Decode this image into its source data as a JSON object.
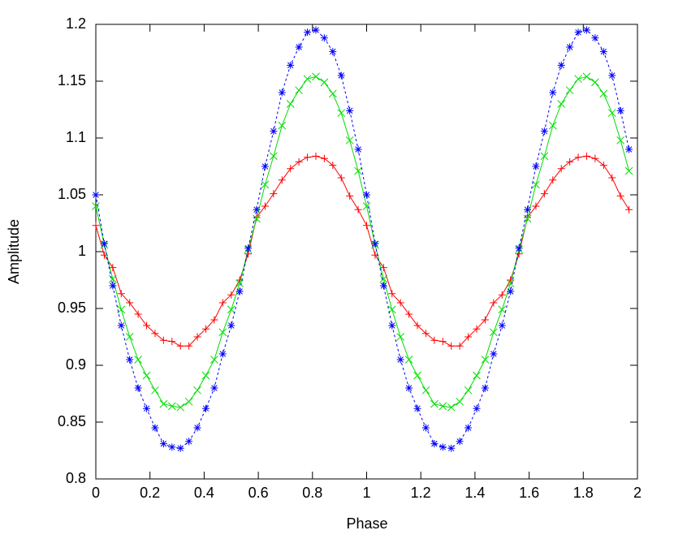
{
  "chart_data": {
    "type": "line",
    "x_label": "Phase",
    "y_label": "Amplitude",
    "xlim": [
      0,
      2
    ],
    "xticks": [
      0,
      0.2,
      0.4,
      0.6,
      0.8,
      1,
      1.2,
      1.4,
      1.6,
      1.8,
      2
    ],
    "ylim": [
      0.8,
      1.2
    ],
    "yticks": [
      0.8,
      0.85,
      0.9,
      0.95,
      1,
      1.05,
      1.1,
      1.15,
      1.2
    ],
    "x": [
      0,
      0.03125,
      0.0625,
      0.09375,
      0.125,
      0.15625,
      0.1875,
      0.21875,
      0.25,
      0.28125,
      0.3125,
      0.34375,
      0.375,
      0.40625,
      0.4375,
      0.46875,
      0.5,
      0.53125,
      0.5625,
      0.59375,
      0.625,
      0.65625,
      0.6875,
      0.71875,
      0.75,
      0.78125,
      0.8125,
      0.84375,
      0.875,
      0.90625,
      0.9375,
      0.96875,
      1,
      1.03125,
      1.0625,
      1.09375,
      1.125,
      1.15625,
      1.1875,
      1.21875,
      1.25,
      1.28125,
      1.3125,
      1.34375,
      1.375,
      1.40625,
      1.4375,
      1.46875,
      1.5,
      1.53125,
      1.5625,
      1.59375,
      1.625,
      1.65625,
      1.6875,
      1.71875,
      1.75,
      1.78125,
      1.8125,
      1.84375,
      1.875,
      1.90625,
      1.9375,
      1.96875
    ],
    "series": [
      {
        "color": "#ff0000",
        "marker": "plus",
        "dash": false,
        "values": [
          1.023,
          0.997,
          0.986,
          0.963,
          0.955,
          0.945,
          0.935,
          0.928,
          0.922,
          0.921,
          0.917,
          0.917,
          0.925,
          0.932,
          0.94,
          0.955,
          0.962,
          0.975,
          0.998,
          1.03,
          1.04,
          1.051,
          1.063,
          1.073,
          1.079,
          1.083,
          1.084,
          1.082,
          1.076,
          1.065,
          1.049,
          1.037,
          1.023,
          0.997,
          0.986,
          0.963,
          0.955,
          0.945,
          0.935,
          0.928,
          0.922,
          0.921,
          0.917,
          0.917,
          0.925,
          0.932,
          0.94,
          0.955,
          0.962,
          0.975,
          0.998,
          1.03,
          1.04,
          1.051,
          1.063,
          1.073,
          1.079,
          1.083,
          1.084,
          1.082,
          1.076,
          1.065,
          1.049,
          1.037
        ]
      },
      {
        "color": "#00dd00",
        "marker": "cross",
        "dash": false,
        "values": [
          1.04,
          1.006,
          0.976,
          0.949,
          0.925,
          0.905,
          0.891,
          0.878,
          0.866,
          0.864,
          0.863,
          0.868,
          0.878,
          0.891,
          0.905,
          0.929,
          0.949,
          0.972,
          1.002,
          1.029,
          1.059,
          1.084,
          1.111,
          1.13,
          1.142,
          1.152,
          1.154,
          1.149,
          1.139,
          1.122,
          1.098,
          1.071,
          1.04,
          1.006,
          0.976,
          0.949,
          0.925,
          0.905,
          0.891,
          0.878,
          0.866,
          0.864,
          0.863,
          0.868,
          0.878,
          0.891,
          0.905,
          0.929,
          0.949,
          0.972,
          1.002,
          1.029,
          1.059,
          1.084,
          1.111,
          1.13,
          1.142,
          1.152,
          1.154,
          1.149,
          1.139,
          1.122,
          1.098,
          1.071
        ]
      },
      {
        "color": "#0000ff",
        "marker": "star",
        "dash": true,
        "values": [
          1.05,
          1.007,
          0.97,
          0.935,
          0.905,
          0.88,
          0.862,
          0.845,
          0.831,
          0.828,
          0.827,
          0.833,
          0.845,
          0.862,
          0.88,
          0.91,
          0.935,
          0.965,
          1.003,
          1.037,
          1.075,
          1.106,
          1.14,
          1.164,
          1.18,
          1.193,
          1.195,
          1.188,
          1.176,
          1.155,
          1.124,
          1.09,
          1.05,
          1.007,
          0.97,
          0.935,
          0.905,
          0.88,
          0.862,
          0.845,
          0.831,
          0.828,
          0.827,
          0.833,
          0.845,
          0.862,
          0.88,
          0.91,
          0.935,
          0.965,
          1.003,
          1.037,
          1.075,
          1.106,
          1.14,
          1.164,
          1.18,
          1.193,
          1.195,
          1.188,
          1.176,
          1.155,
          1.124,
          1.09
        ]
      }
    ]
  }
}
